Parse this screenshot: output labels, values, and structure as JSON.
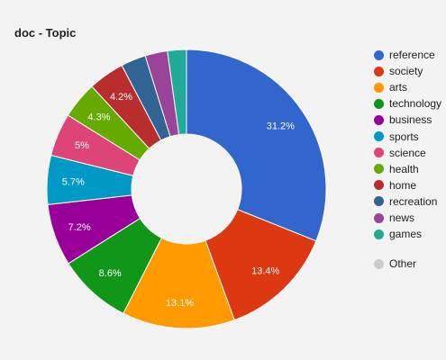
{
  "chart_data": {
    "type": "pie",
    "title": "doc - Topic",
    "donut": true,
    "legend_position": "right",
    "slices": [
      {
        "name": "reference",
        "value": 31.2,
        "label": "31.2%",
        "color": "#3366cc"
      },
      {
        "name": "society",
        "value": 13.4,
        "label": "13.4%",
        "color": "#dc3912"
      },
      {
        "name": "arts",
        "value": 13.1,
        "label": "13.1%",
        "color": "#ff9900"
      },
      {
        "name": "technology",
        "value": 8.6,
        "label": "8.6%",
        "color": "#109618"
      },
      {
        "name": "business",
        "value": 7.2,
        "label": "7.2%",
        "color": "#990099"
      },
      {
        "name": "sports",
        "value": 5.7,
        "label": "5.7%",
        "color": "#0099c6"
      },
      {
        "name": "science",
        "value": 5.0,
        "label": "5%",
        "color": "#dd4477"
      },
      {
        "name": "health",
        "value": 4.3,
        "label": "4.3%",
        "color": "#66aa00"
      },
      {
        "name": "home",
        "value": 4.2,
        "label": "4.2%",
        "color": "#b82e2e"
      },
      {
        "name": "recreation",
        "value": 2.9,
        "label": "",
        "color": "#316395"
      },
      {
        "name": "news",
        "value": 2.6,
        "label": "",
        "color": "#994499"
      },
      {
        "name": "games",
        "value": 2.2,
        "label": "",
        "color": "#22aa99"
      }
    ],
    "other": {
      "name": "Other",
      "value": 0,
      "color": "#cccccc"
    }
  }
}
